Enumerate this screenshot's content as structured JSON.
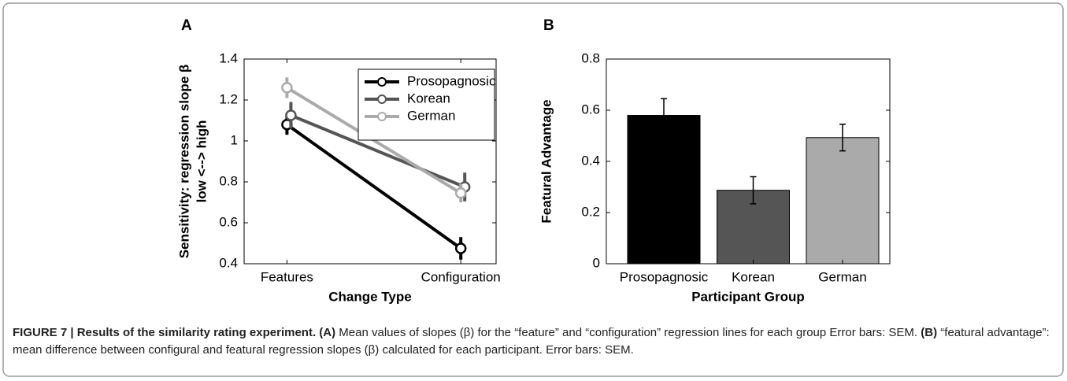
{
  "chart_data": [
    {
      "type": "line",
      "panel": "A",
      "xlabel": "Change Type",
      "ylabel": [
        "Sensitivity: regression slope β",
        "low <--> high"
      ],
      "categories": [
        "Features",
        "Configuration"
      ],
      "ylim": [
        0.4,
        1.4
      ],
      "yticks": [
        0.4,
        0.6,
        0.8,
        1,
        1.2,
        1.4
      ],
      "legend": "upper right",
      "series": [
        {
          "name": "Prosopagnosic",
          "color": "#000000",
          "values": [
            1.08,
            0.475
          ],
          "errors": [
            0.05,
            0.055
          ]
        },
        {
          "name": "Korean",
          "color": "#555555",
          "values": [
            1.125,
            0.775
          ],
          "errors": [
            0.065,
            0.07
          ]
        },
        {
          "name": "German",
          "color": "#aaaaaa",
          "values": [
            1.26,
            0.745
          ],
          "errors": [
            0.05,
            0.045
          ]
        }
      ]
    },
    {
      "type": "bar",
      "panel": "B",
      "xlabel": "Participant Group",
      "ylabel": [
        "Featural Advantage"
      ],
      "categories": [
        "Prosopagnosic",
        "Korean",
        "German"
      ],
      "ylim": [
        0,
        0.8
      ],
      "yticks": [
        0,
        0.2,
        0.4,
        0.6,
        0.8
      ],
      "values": [
        0.58,
        0.287,
        0.493
      ],
      "errors": [
        0.065,
        0.053,
        0.052
      ],
      "colors": [
        "#000000",
        "#555555",
        "#aaaaaa"
      ]
    }
  ],
  "caption": {
    "title": "FIGURE 7 | Results of the similarity rating experiment.",
    "a_label": "(A)",
    "a_text": " Mean values of slopes (β) for the “feature” and “configuration” regression lines for each group Error bars: SEM.",
    "b_label": "(B)",
    "b_text": " “featural advantage”: mean difference between configural and featural regression slopes (β) calculated for each participant. Error bars: SEM."
  }
}
